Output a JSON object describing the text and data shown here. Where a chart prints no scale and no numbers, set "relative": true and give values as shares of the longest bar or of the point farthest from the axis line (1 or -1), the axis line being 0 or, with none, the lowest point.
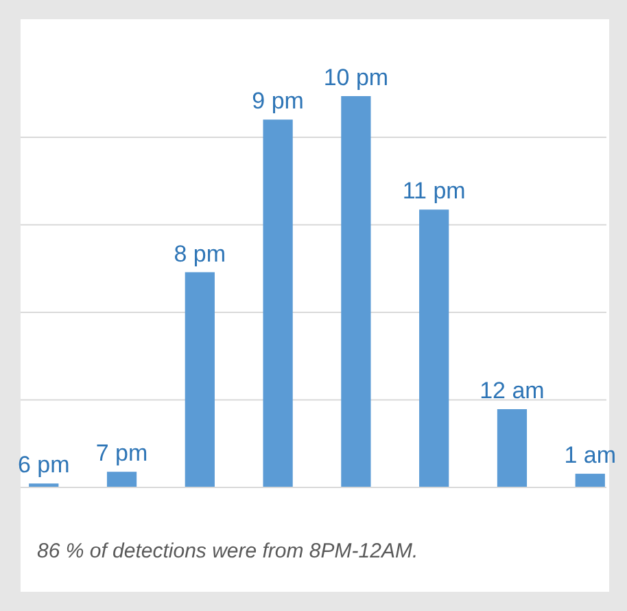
{
  "chart_data": {
    "type": "bar",
    "relative": true,
    "grid": "y",
    "categories": [
      "6 pm",
      "7 pm",
      "8 pm",
      "9 pm",
      "10 pm",
      "11 pm",
      "12 am",
      "1 am"
    ],
    "values": [
      0.01,
      0.04,
      0.55,
      0.94,
      1,
      0.71,
      0.2,
      0.035
    ],
    "color": "#5b9bd5",
    "annotations": [
      "86 % of detections were from 8PM-12AM."
    ]
  }
}
